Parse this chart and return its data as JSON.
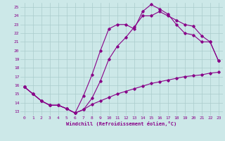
{
  "xlabel": "Windchill (Refroidissement éolien,°C)",
  "background_color": "#cce8e8",
  "grid_color": "#aacccc",
  "line_color": "#880088",
  "x_hours": [
    0,
    1,
    2,
    3,
    4,
    5,
    6,
    7,
    8,
    9,
    10,
    11,
    12,
    13,
    14,
    15,
    16,
    17,
    18,
    19,
    20,
    21,
    22,
    23
  ],
  "line1": [
    15.8,
    15.0,
    14.2,
    13.7,
    13.7,
    13.3,
    12.8,
    13.2,
    14.5,
    16.5,
    19.0,
    20.5,
    21.5,
    22.7,
    24.0,
    24.0,
    24.5,
    24.0,
    23.5,
    23.0,
    22.8,
    21.7,
    21.0,
    18.8
  ],
  "line2": [
    15.8,
    15.0,
    14.2,
    13.7,
    13.7,
    13.3,
    12.8,
    13.2,
    13.8,
    14.2,
    14.6,
    15.0,
    15.3,
    15.6,
    15.9,
    16.2,
    16.4,
    16.6,
    16.8,
    17.0,
    17.1,
    17.2,
    17.4,
    17.5
  ],
  "line3": [
    15.8,
    15.0,
    14.2,
    13.7,
    13.7,
    13.3,
    12.8,
    14.8,
    17.2,
    20.0,
    22.5,
    23.0,
    23.0,
    22.5,
    24.5,
    25.3,
    24.8,
    24.2,
    23.0,
    22.0,
    21.8,
    21.0,
    21.0,
    18.8
  ],
  "ylim": [
    12.5,
    25.5
  ],
  "yticks": [
    13,
    14,
    15,
    16,
    17,
    18,
    19,
    20,
    21,
    22,
    23,
    24,
    25
  ],
  "xticks": [
    0,
    1,
    2,
    3,
    4,
    5,
    6,
    7,
    8,
    9,
    10,
    11,
    12,
    13,
    14,
    15,
    16,
    17,
    18,
    19,
    20,
    21,
    22,
    23
  ],
  "marker": "D",
  "marker_size": 1.8,
  "line_width": 0.8,
  "tick_fontsize": 4.5,
  "xlabel_fontsize": 5.0
}
